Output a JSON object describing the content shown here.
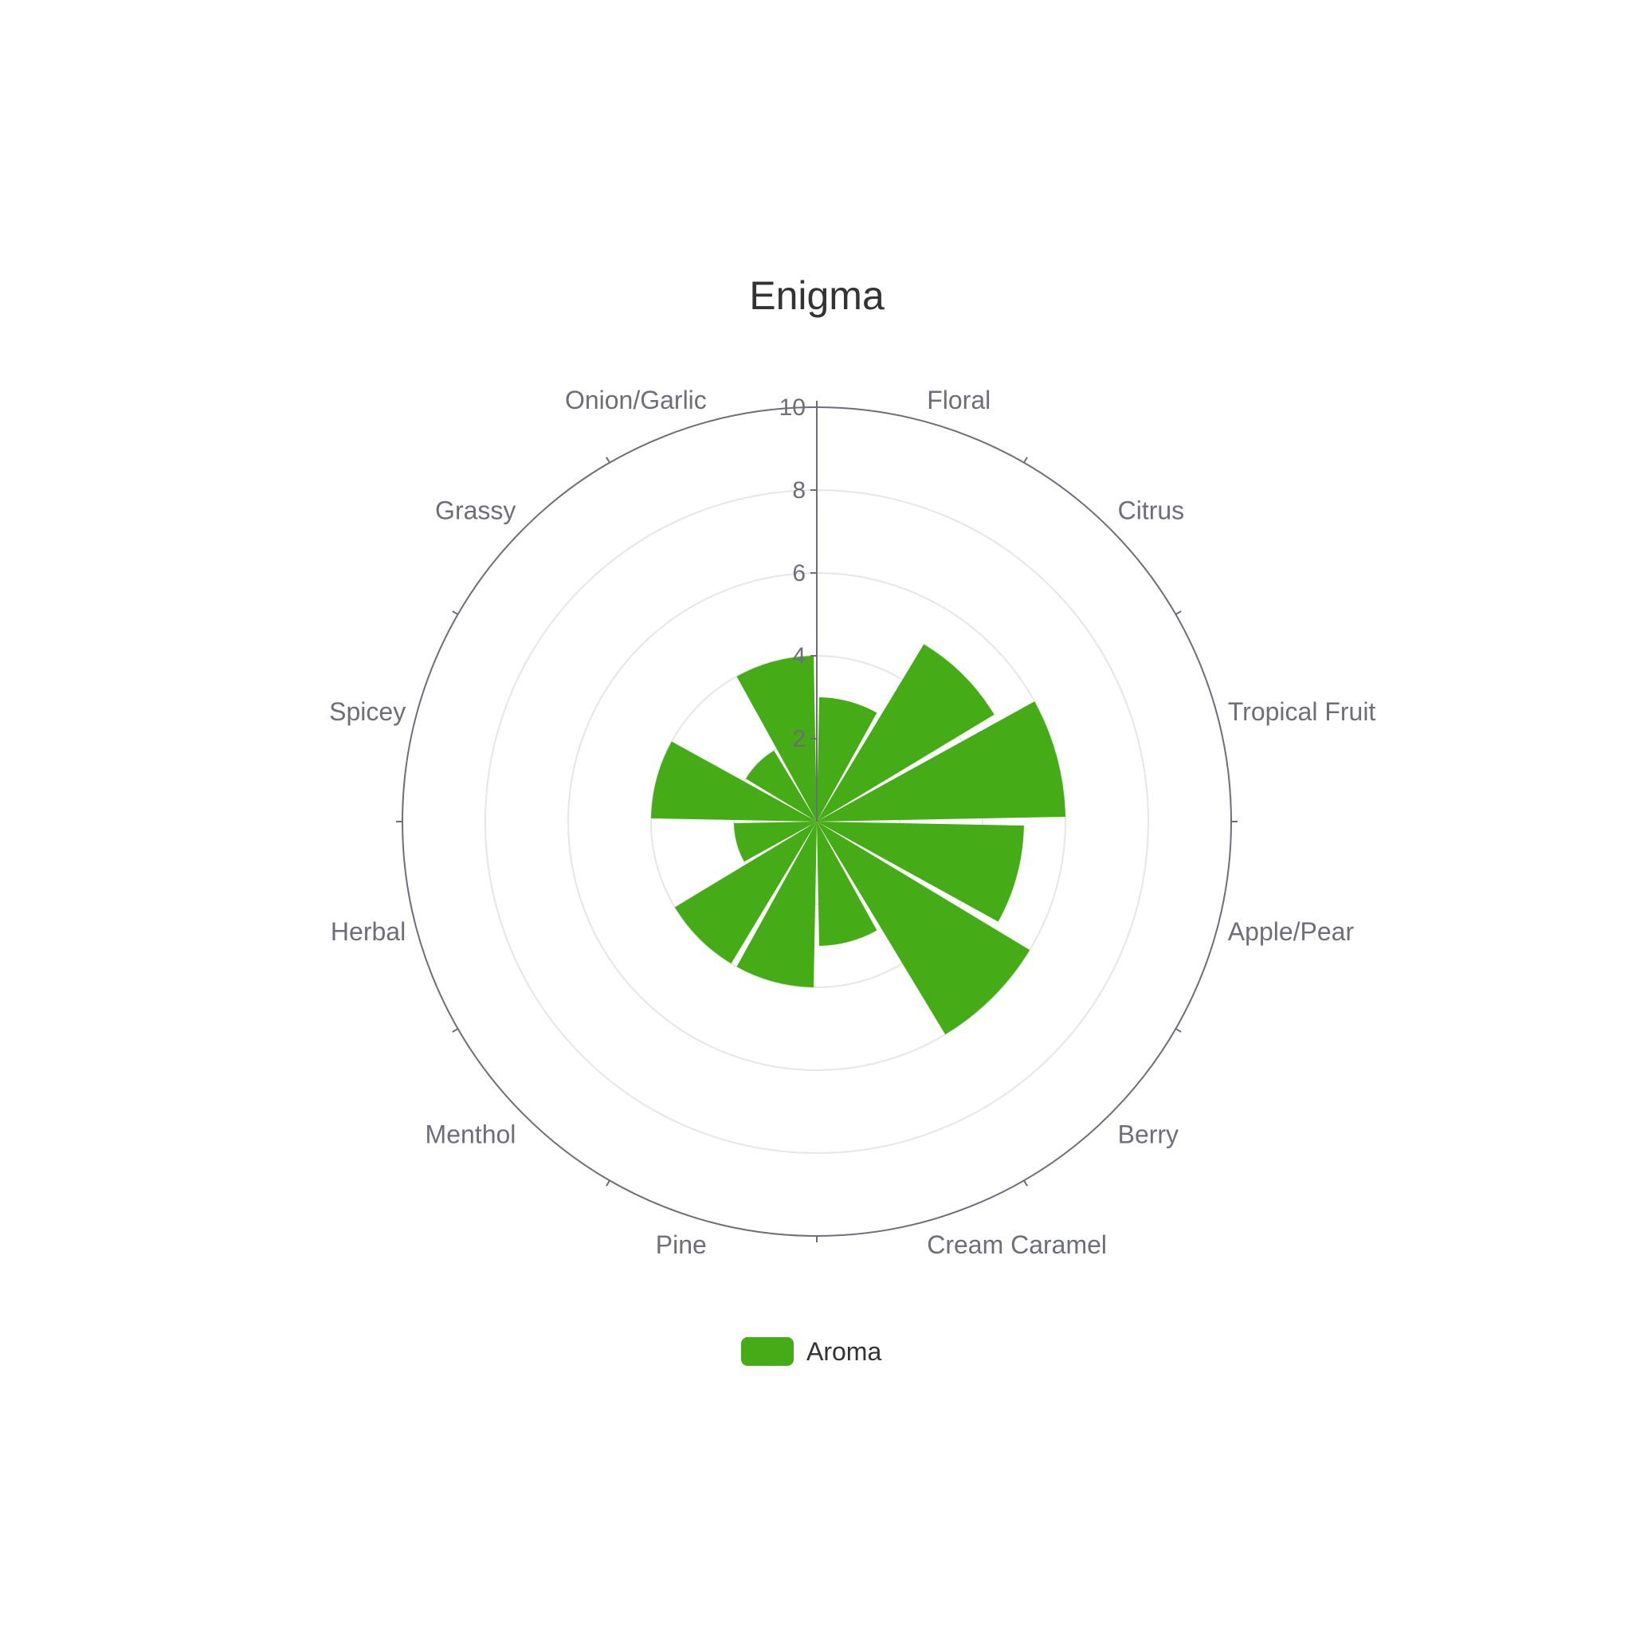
{
  "chart_data": {
    "type": "polar-bar",
    "title": "Enigma",
    "categories": [
      "Floral",
      "Citrus",
      "Tropical Fruit",
      "Apple/Pear",
      "Berry",
      "Cream Caramel",
      "Pine",
      "Menthol",
      "Herbal",
      "Spicey",
      "Grassy",
      "Onion/Garlic"
    ],
    "series": [
      {
        "name": "Aroma",
        "values": [
          3.0,
          5.0,
          6.0,
          5.0,
          6.0,
          3.0,
          4.0,
          4.0,
          2.0,
          4.0,
          2.0,
          4.0
        ]
      }
    ],
    "radial_axis": {
      "min": 0,
      "max": 10,
      "ticks": [
        2,
        4,
        6,
        8,
        10
      ]
    },
    "legend": {
      "position": "bottom",
      "label": "Aroma"
    },
    "colors": {
      "bar": "#45ab16",
      "axis": "#6e6e78",
      "grid": "#e6e6e6"
    }
  }
}
